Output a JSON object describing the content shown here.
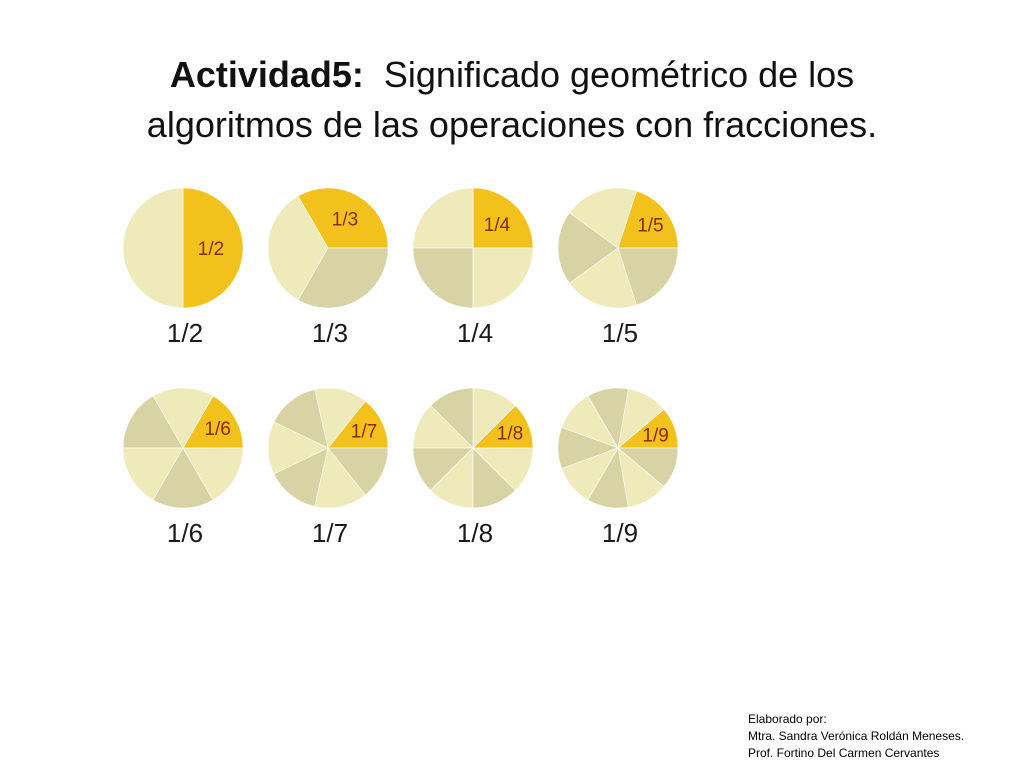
{
  "slide": {
    "title_bold": "Actividad5:",
    "title_rest_line1": "Significado geométrico de los",
    "title_line2": "algoritmos de las operaciones con fracciones."
  },
  "colors": {
    "highlight": "#f2c11c",
    "slice_light": "#efeab9",
    "slice_dark": "#d8d3a4",
    "label_text": "#8a2a10"
  },
  "pies": [
    {
      "denominator": 2,
      "slice_label": "1/2",
      "caption": "1/2"
    },
    {
      "denominator": 3,
      "slice_label": "1/3",
      "caption": "1/3"
    },
    {
      "denominator": 4,
      "slice_label": "1/4",
      "caption": "1/4"
    },
    {
      "denominator": 5,
      "slice_label": "1/5",
      "caption": "1/5"
    },
    {
      "denominator": 6,
      "slice_label": "1/6",
      "caption": "1/6"
    },
    {
      "denominator": 7,
      "slice_label": "1/7",
      "caption": "1/7"
    },
    {
      "denominator": 8,
      "slice_label": "1/8",
      "caption": "1/8"
    },
    {
      "denominator": 9,
      "slice_label": "1/9",
      "caption": "1/9"
    }
  ],
  "credits": {
    "line1": "Elaborado por:",
    "line2": "Mtra. Sandra Verónica Roldán Meneses.",
    "line3": "Prof. Fortino Del Carmen Cervantes"
  }
}
